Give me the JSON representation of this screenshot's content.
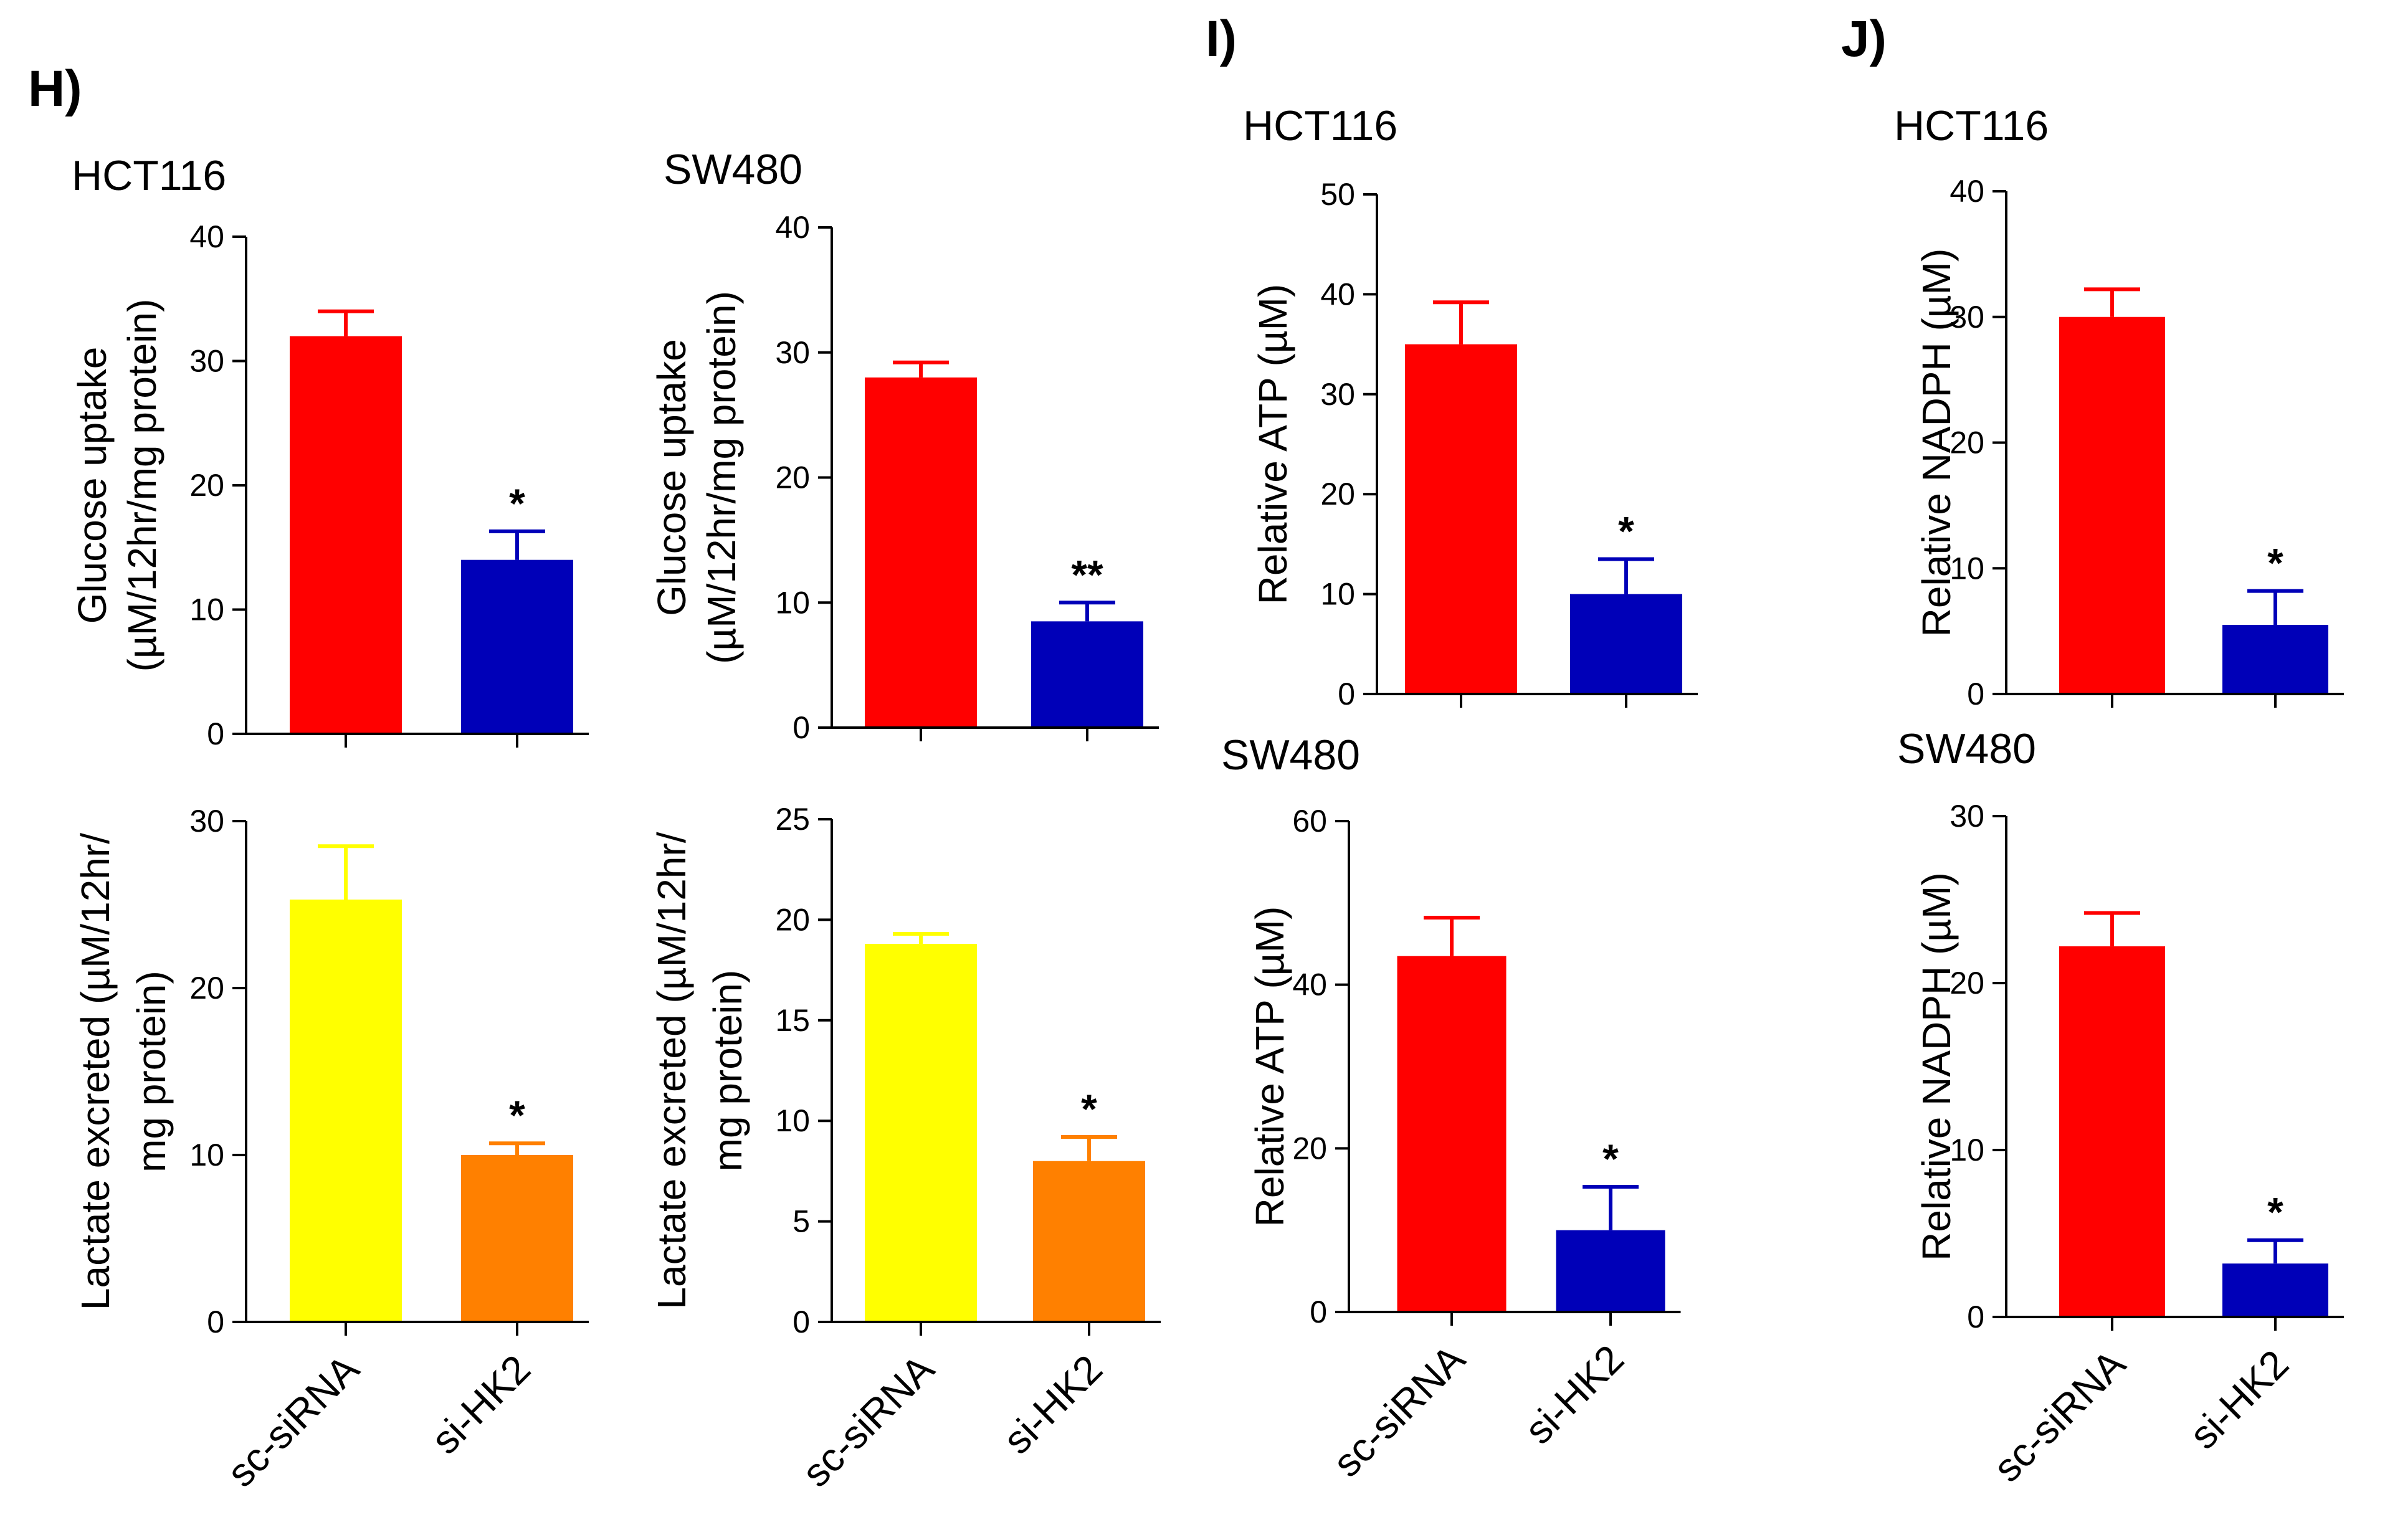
{
  "panels": {
    "H": "H)",
    "I": "I)",
    "J": "J)"
  },
  "chart_data": [
    {
      "id": "h-glucose-hct116",
      "panel": "H",
      "type": "bar",
      "title": "HCT116",
      "ylabel_lines": [
        "Glucose uptake",
        "(µM/12hr/mg protein)"
      ],
      "categories": [
        "sc-siRNA",
        "si-HK2"
      ],
      "values": [
        32,
        14
      ],
      "errors": [
        2,
        2.3
      ],
      "colors": [
        "#ff0000",
        "#0000b8"
      ],
      "significance": [
        "",
        "*"
      ],
      "ylim": [
        0,
        40
      ],
      "yticks": [
        "0",
        "10",
        "20",
        "30",
        "40"
      ],
      "show_xlabels": false
    },
    {
      "id": "h-glucose-sw480",
      "panel": "H",
      "type": "bar",
      "title": "SW480",
      "ylabel_lines": [
        "Glucose uptake",
        "(µM/12hr/mg protein)"
      ],
      "categories": [
        "sc-siRNA",
        "si-HK2"
      ],
      "values": [
        28,
        8.5
      ],
      "errors": [
        1.2,
        1.5
      ],
      "colors": [
        "#ff0000",
        "#0000b8"
      ],
      "significance": [
        "",
        "**"
      ],
      "ylim": [
        0,
        40
      ],
      "yticks": [
        "0",
        "10",
        "20",
        "30",
        "40"
      ],
      "show_xlabels": false
    },
    {
      "id": "h-lactate-hct116",
      "panel": "H",
      "type": "bar",
      "title": "",
      "ylabel_lines": [
        "Lactate excreted (µM/12hr/",
        "mg protein)"
      ],
      "categories": [
        "sc-siRNA",
        "si-HK2"
      ],
      "values": [
        25.3,
        10
      ],
      "errors": [
        3.2,
        0.7
      ],
      "colors": [
        "#ffff00",
        "#ff8000"
      ],
      "significance": [
        "",
        "*"
      ],
      "ylim": [
        0,
        30
      ],
      "yticks": [
        "0",
        "10",
        "20",
        "30"
      ],
      "show_xlabels": true
    },
    {
      "id": "h-lactate-sw480",
      "panel": "H",
      "type": "bar",
      "title": "",
      "ylabel_lines": [
        "Lactate excreted (µM/12hr/",
        "mg protein)"
      ],
      "categories": [
        "sc-siRNA",
        "si-HK2"
      ],
      "values": [
        18.8,
        8
      ],
      "errors": [
        0.5,
        1.2
      ],
      "colors": [
        "#ffff00",
        "#ff8000"
      ],
      "significance": [
        "",
        "*"
      ],
      "ylim": [
        0,
        25
      ],
      "yticks": [
        "0",
        "5",
        "10",
        "15",
        "20",
        "25"
      ],
      "show_xlabels": true
    },
    {
      "id": "i-atp-hct116",
      "panel": "I",
      "type": "bar",
      "title": "HCT116",
      "ylabel_lines": [
        "Relative ATP  (µM)"
      ],
      "categories": [
        "sc-siRNA",
        "si-HK2"
      ],
      "values": [
        35,
        10
      ],
      "errors": [
        4.2,
        3.5
      ],
      "colors": [
        "#ff0000",
        "#0000b8"
      ],
      "significance": [
        "",
        "*"
      ],
      "ylim": [
        0,
        50
      ],
      "yticks": [
        "0",
        "10",
        "20",
        "30",
        "40",
        "50"
      ],
      "show_xlabels": false
    },
    {
      "id": "i-atp-sw480",
      "panel": "I",
      "type": "bar",
      "title": "SW480",
      "ylabel_lines": [
        "Relative ATP  (µM)"
      ],
      "categories": [
        "sc-siRNA",
        "si-HK2"
      ],
      "values": [
        43.5,
        10
      ],
      "errors": [
        4.7,
        5.3
      ],
      "colors": [
        "#ff0000",
        "#0000b8"
      ],
      "significance": [
        "",
        "*"
      ],
      "ylim": [
        0,
        60
      ],
      "yticks": [
        "0",
        "20",
        "40",
        "60"
      ],
      "show_xlabels": true
    },
    {
      "id": "j-nadph-hct116",
      "panel": "J",
      "type": "bar",
      "title": "HCT116",
      "ylabel_lines": [
        "Relative NADPH  (µM)"
      ],
      "categories": [
        "sc-siRNA",
        "si-HK2"
      ],
      "values": [
        30,
        5.5
      ],
      "errors": [
        2.2,
        2.7
      ],
      "colors": [
        "#ff0000",
        "#0000b8"
      ],
      "significance": [
        "",
        "*"
      ],
      "ylim": [
        0,
        40
      ],
      "yticks": [
        "0",
        "10",
        "20",
        "30",
        "40"
      ],
      "show_xlabels": false
    },
    {
      "id": "j-nadph-sw480",
      "panel": "J",
      "type": "bar",
      "title": "SW480",
      "ylabel_lines": [
        "Relative NADPH  (µM)"
      ],
      "categories": [
        "sc-siRNA",
        "si-HK2"
      ],
      "values": [
        22.2,
        3.2
      ],
      "errors": [
        2,
        1.4
      ],
      "colors": [
        "#ff0000",
        "#0000b8"
      ],
      "significance": [
        "",
        "*"
      ],
      "ylim": [
        0,
        30
      ],
      "yticks": [
        "0",
        "10",
        "20",
        "30"
      ],
      "show_xlabels": true
    }
  ]
}
